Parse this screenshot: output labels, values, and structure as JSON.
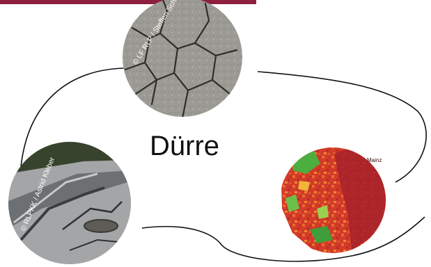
{
  "diagram": {
    "title": "Dürre",
    "accent_color": "#8e1f3f",
    "photos": [
      {
        "id": "cracked-soil",
        "credit": "© LF RLP / Steffen Schobel"
      },
      {
        "id": "damaged-road",
        "credit": "© RLPKK / Astrid Kleber"
      },
      {
        "id": "drought-map",
        "city_label": "Mainz"
      }
    ]
  }
}
